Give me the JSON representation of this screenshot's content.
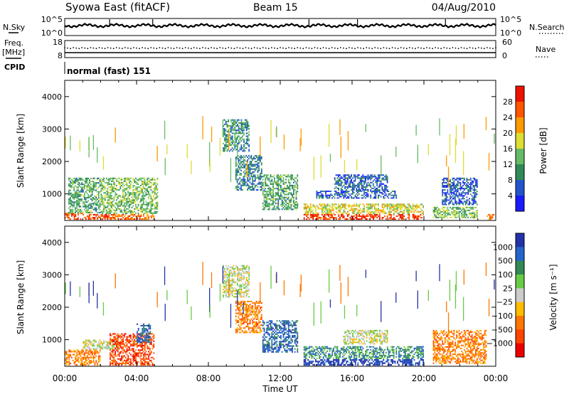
{
  "header": {
    "station": "Syowa East (fitACF)",
    "beam": "Beam 15",
    "date": "04/Aug/2010"
  },
  "noise_panel": {
    "left_label": "N.Sky",
    "right_label": "N.Search",
    "left_ticks": [
      "10^5",
      "10^0"
    ],
    "right_ticks": [
      "10^5",
      "10^0"
    ]
  },
  "freq_panel": {
    "left_label_1": "Freq.",
    "left_label_2": "[MHz]",
    "left_ticks": [
      "18",
      "8"
    ],
    "right_label": "Nave",
    "right_ticks": [
      "60",
      "0"
    ]
  },
  "cpid": {
    "label": "CPID",
    "value": "normal (fast) 151"
  },
  "x_axis": {
    "title": "Time UT",
    "ticks": [
      "00:00",
      "04:00",
      "08:00",
      "12:00",
      "16:00",
      "20:00",
      "00:00"
    ]
  },
  "colors": {
    "power": [
      "#1a1aff",
      "#2255cc",
      "#2e8b57",
      "#66bb66",
      "#dddd33",
      "#ff9900",
      "#ff5500",
      "#ee1100"
    ],
    "velocity": [
      "#2233aa",
      "#2266cc",
      "#338855",
      "#66cc44",
      "#cccccc",
      "#ffbb00",
      "#ff7700",
      "#ff4400",
      "#ee0000"
    ]
  },
  "chart_data": [
    {
      "type": "heatmap",
      "panel": "power",
      "ylabel": "Slant Range [km]",
      "yticks": [
        "1000",
        "2000",
        "3000",
        "4000"
      ],
      "ylim": [
        180,
        4500
      ],
      "xlim_hours": [
        0,
        24
      ],
      "colorbar_label": "Power [dB]",
      "colorbar_ticks": [
        "4",
        "8",
        "12",
        "16",
        "20",
        "24",
        "28"
      ],
      "colorbar_range": [
        0,
        32
      ],
      "regions": [
        {
          "t": [
            0.0,
            1.0
          ],
          "r": [
            200,
            420
          ],
          "v": 26
        },
        {
          "t": [
            1.0,
            2.5
          ],
          "r": [
            200,
            380
          ],
          "v": 27
        },
        {
          "t": [
            2.5,
            5.0
          ],
          "r": [
            200,
            380
          ],
          "v": 25
        },
        {
          "t": [
            0.2,
            2.0
          ],
          "r": [
            400,
            1500
          ],
          "v": 12
        },
        {
          "t": [
            2.0,
            5.2
          ],
          "r": [
            380,
            1500
          ],
          "v": 14
        },
        {
          "t": [
            8.8,
            10.3
          ],
          "r": [
            2300,
            3300
          ],
          "v": 10
        },
        {
          "t": [
            9.5,
            11.0
          ],
          "r": [
            1100,
            2200
          ],
          "v": 9
        },
        {
          "t": [
            11.0,
            13.0
          ],
          "r": [
            500,
            1600
          ],
          "v": 12
        },
        {
          "t": [
            13.3,
            20.0
          ],
          "r": [
            200,
            380
          ],
          "v": 28
        },
        {
          "t": [
            13.3,
            20.0
          ],
          "r": [
            380,
            700
          ],
          "v": 18
        },
        {
          "t": [
            14.0,
            18.5
          ],
          "r": [
            850,
            1100
          ],
          "v": 6
        },
        {
          "t": [
            15.0,
            18.0
          ],
          "r": [
            1100,
            1600
          ],
          "v": 7
        },
        {
          "t": [
            20.5,
            23.0
          ],
          "r": [
            250,
            600
          ],
          "v": 14
        },
        {
          "t": [
            21.0,
            23.0
          ],
          "r": [
            650,
            1500
          ],
          "v": 6
        },
        {
          "t": [
            23.5,
            24.0
          ],
          "r": [
            200,
            380
          ],
          "v": 22
        }
      ]
    },
    {
      "type": "heatmap",
      "panel": "velocity",
      "ylabel": "Slant Range [km]",
      "yticks": [
        "1000",
        "2000",
        "3000",
        "4000"
      ],
      "ylim": [
        180,
        4500
      ],
      "xlim_hours": [
        0,
        24
      ],
      "colorbar_label": "Velocity [m s⁻¹]",
      "colorbar_ticks": [
        "1000",
        "500",
        "100",
        "25",
        "−25",
        "−100",
        "−500",
        "−1000"
      ],
      "regions": [
        {
          "t": [
            0.0,
            2.0
          ],
          "r": [
            200,
            700
          ],
          "v": "-100"
        },
        {
          "t": [
            1.0,
            3.0
          ],
          "r": [
            700,
            1000
          ],
          "v": "25"
        },
        {
          "t": [
            2.5,
            5.0
          ],
          "r": [
            200,
            1200
          ],
          "v": "-500"
        },
        {
          "t": [
            4.0,
            4.8
          ],
          "r": [
            900,
            1500
          ],
          "v": "500"
        },
        {
          "t": [
            8.8,
            10.3
          ],
          "r": [
            2300,
            3300
          ],
          "v": "25"
        },
        {
          "t": [
            9.5,
            11.0
          ],
          "r": [
            1200,
            2200
          ],
          "v": "-100"
        },
        {
          "t": [
            11.0,
            13.0
          ],
          "r": [
            600,
            1600
          ],
          "v": "500"
        },
        {
          "t": [
            13.3,
            20.0
          ],
          "r": [
            200,
            400
          ],
          "v": "1000"
        },
        {
          "t": [
            13.3,
            20.0
          ],
          "r": [
            400,
            800
          ],
          "v": "100"
        },
        {
          "t": [
            15.5,
            18.0
          ],
          "r": [
            850,
            1300
          ],
          "v": "25"
        },
        {
          "t": [
            20.5,
            23.5
          ],
          "r": [
            250,
            1300
          ],
          "v": "-100"
        }
      ]
    }
  ]
}
